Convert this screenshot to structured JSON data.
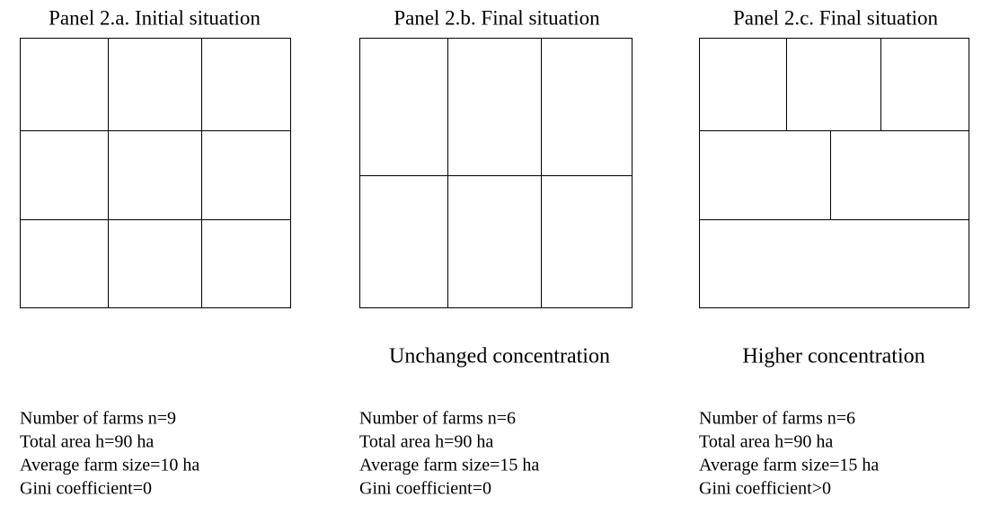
{
  "panels": [
    {
      "title": "Panel 2.a. Initial situation",
      "stats": [
        "Number of farms n=9",
        "Total area h=90 ha",
        "Average farm size=10 ha",
        "Gini coefficient=0"
      ]
    },
    {
      "title": "Panel 2.b. Final situation",
      "subtitle": "Unchanged concentration",
      "stats": [
        "Number of farms n=6",
        "Total area h=90 ha",
        "Average farm size=15 ha",
        "Gini coefficient=0"
      ]
    },
    {
      "title": "Panel 2.c. Final situation",
      "subtitle": "Higher concentration",
      "stats": [
        "Number of farms n=6",
        "Total area h=90 ha",
        "Average farm size=15 ha",
        "Gini coefficient>0"
      ]
    }
  ]
}
